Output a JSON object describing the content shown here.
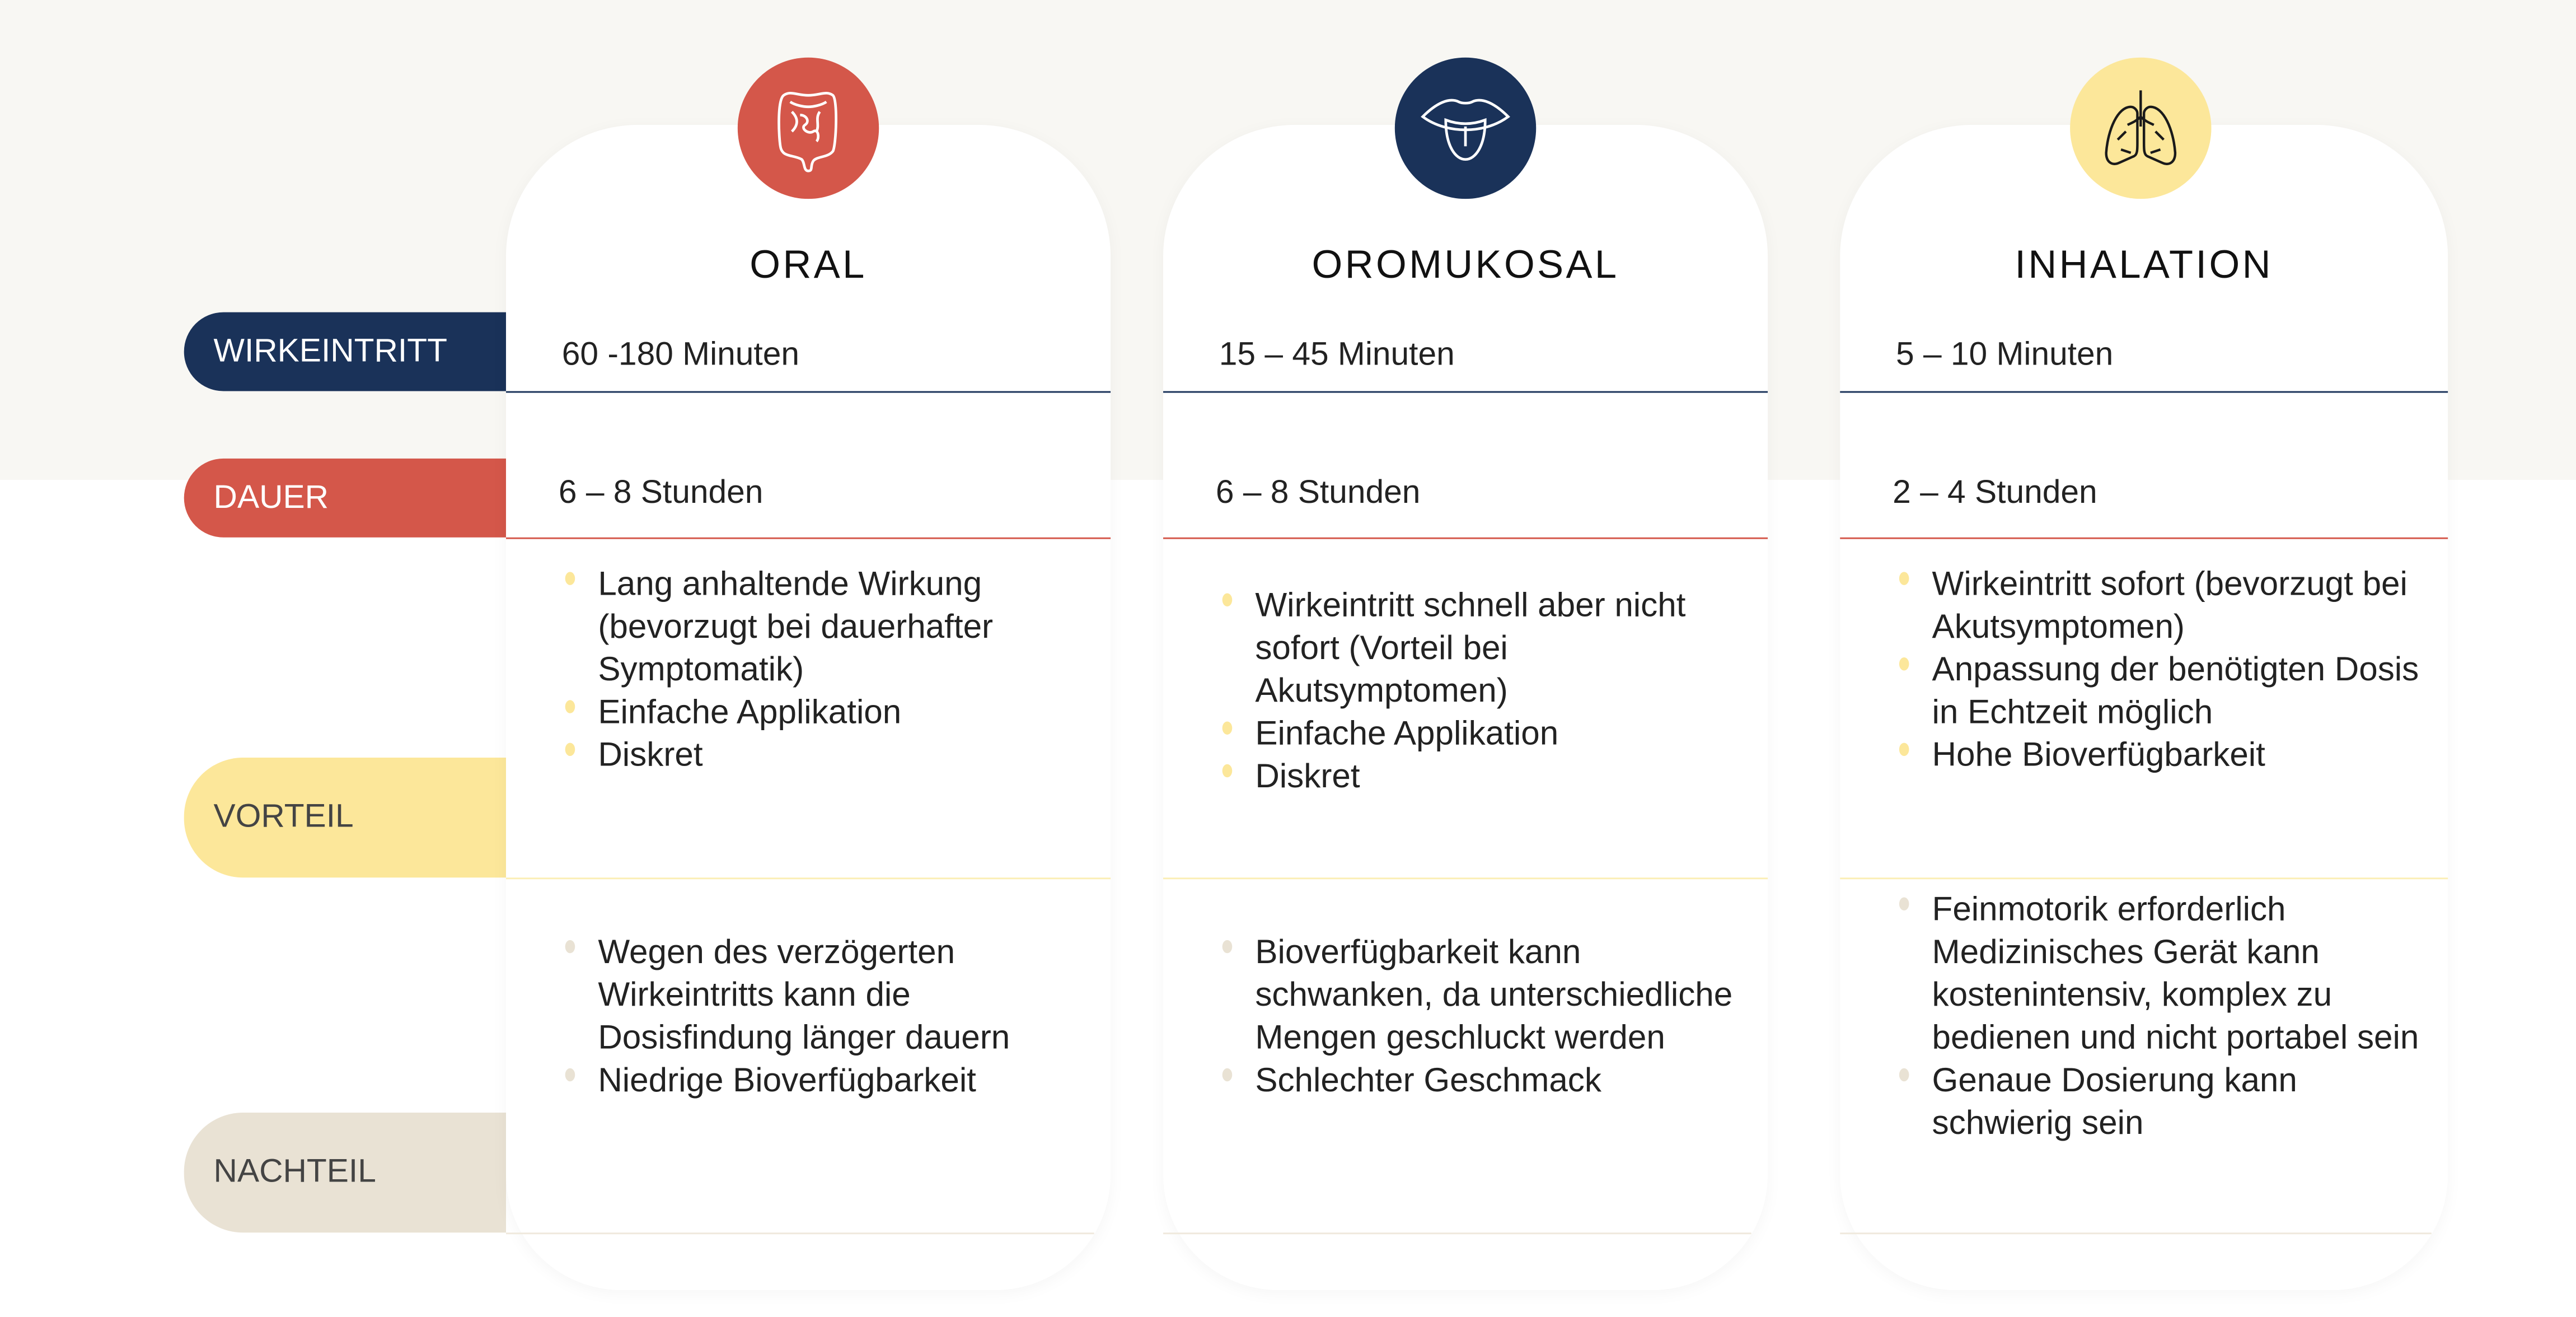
{
  "colors": {
    "wirkeintritt": "#1a3259",
    "dauer": "#d4574a",
    "vorteil": "#fce79a",
    "nachteil": "#e9e2d4",
    "background": "#f8f7f3"
  },
  "labels": {
    "wirkeintritt": "WIRKEINTRITT",
    "dauer": "DAUER",
    "vorteil": "VORTEIL",
    "nachteil": "NACHTEIL"
  },
  "columns": [
    {
      "title": "ORAL",
      "icon": "intestine-icon",
      "icon_color": "#d4574a",
      "wirkeintritt": "60 -180 Minuten",
      "dauer": "6 – 8 Stunden",
      "vorteil": [
        {
          "text": "Lang anhaltende Wirkung (bevorzugt bei dauerhafter Symptomatik)",
          "bullet": true
        },
        {
          "text": "Einfache Applikation",
          "bullet": true
        },
        {
          "text": "Diskret",
          "bullet": true
        }
      ],
      "nachteil": [
        {
          "text": "Wegen des verzögerten Wirkeintritts kann die Dosisfindung länger dauern",
          "bullet": true
        },
        {
          "text": "Niedrige Bioverfügbarkeit",
          "bullet": true
        }
      ]
    },
    {
      "title": "OROMUKOSAL",
      "icon": "mouth-tongue-icon",
      "icon_color": "#1a3259",
      "wirkeintritt": "15 – 45 Minuten",
      "dauer": "6 – 8 Stunden",
      "vorteil": [
        {
          "text": "Wirkeintritt schnell aber nicht sofort (Vorteil bei Akutsymptomen)",
          "bullet": true
        },
        {
          "text": "Einfache Applikation",
          "bullet": true
        },
        {
          "text": "Diskret",
          "bullet": true
        }
      ],
      "nachteil": [
        {
          "text": "Bioverfügbarkeit kann schwanken, da unterschiedliche Mengen geschluckt werden",
          "bullet": true
        },
        {
          "text": "Schlechter Geschmack",
          "bullet": true
        }
      ]
    },
    {
      "title": "INHALATION",
      "icon": "lungs-icon",
      "icon_color": "#fce79a",
      "wirkeintritt": "5 – 10 Minuten",
      "dauer": "2 – 4 Stunden",
      "vorteil": [
        {
          "text": "Wirkeintritt sofort (bevorzugt bei Akutsymptomen)",
          "bullet": true
        },
        {
          "text": "Anpassung der benötigten Dosis in Echtzeit möglich",
          "bullet": true
        },
        {
          "text": "Hohe Bioverfügbarkeit",
          "bullet": true
        }
      ],
      "nachteil": [
        {
          "text": "Feinmotorik erforderlich",
          "bullet": true
        },
        {
          "text": "Medizinisches Gerät kann kostenintensiv, komplex zu bedienen und nicht portabel sein",
          "bullet": false
        },
        {
          "text": "Genaue Dosierung kann schwierig sein",
          "bullet": true
        }
      ]
    }
  ]
}
